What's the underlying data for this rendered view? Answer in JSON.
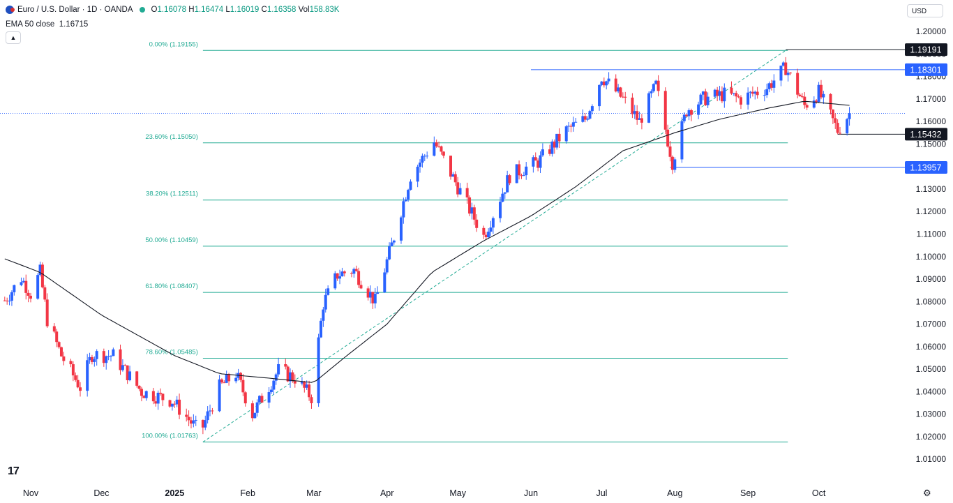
{
  "header": {
    "symbol": "Euro / U.S. Dollar · 1D · OANDA",
    "o_label": "O",
    "o": "1.16078",
    "h_label": "H",
    "h": "1.16474",
    "l_label": "L",
    "l": "1.16019",
    "c_label": "C",
    "c": "1.16358",
    "vol_label": "Vol",
    "vol": "158.83K",
    "ema": "EMA 50 close",
    "ema_value": "1.16715",
    "currency": "USD"
  },
  "icons": {
    "flag": "eur-usd-flag-icon",
    "status": "market-status-dot-icon",
    "collapse": "chevron-up-icon",
    "logo": "tradingview-logo-icon",
    "settings": "gear-icon"
  },
  "colors": {
    "up": "#2962ff",
    "down": "#f23645",
    "fib": "#22ab94",
    "ema": "#131722",
    "price_line": "#2962ff"
  },
  "chart_data": {
    "type": "candlestick",
    "y_ticks": [
      "1.20000",
      "1.19000",
      "1.18000",
      "1.17000",
      "1.16000",
      "1.15000",
      "1.14000",
      "1.13000",
      "1.12000",
      "1.11000",
      "1.10000",
      "1.09000",
      "1.08000",
      "1.07000",
      "1.06000",
      "1.05000",
      "1.04000",
      "1.03000",
      "1.02000",
      "1.01000"
    ],
    "x_ticks": [
      {
        "label": "Nov",
        "date": "2024-11-01",
        "bold": false
      },
      {
        "label": "Dec",
        "date": "2024-12-01",
        "bold": false
      },
      {
        "label": "2025",
        "date": "2025-01-01",
        "bold": true
      },
      {
        "label": "Feb",
        "date": "2025-02-01",
        "bold": false
      },
      {
        "label": "Mar",
        "date": "2025-03-01",
        "bold": false
      },
      {
        "label": "Apr",
        "date": "2025-04-01",
        "bold": false
      },
      {
        "label": "May",
        "date": "2025-05-01",
        "bold": false
      },
      {
        "label": "Jun",
        "date": "2025-06-01",
        "bold": false
      },
      {
        "label": "Jul",
        "date": "2025-07-01",
        "bold": false
      },
      {
        "label": "Aug",
        "date": "2025-08-01",
        "bold": false
      },
      {
        "label": "Sep",
        "date": "2025-09-01",
        "bold": false
      },
      {
        "label": "Oct",
        "date": "2025-10-01",
        "bold": false
      }
    ],
    "fib_levels": [
      {
        "label": "0.00% (1.19155)",
        "value": 1.19155
      },
      {
        "label": "23.60% (1.15050)",
        "value": 1.1505
      },
      {
        "label": "38.20% (1.12511)",
        "value": 1.12511
      },
      {
        "label": "50.00% (1.10459)",
        "value": 1.10459
      },
      {
        "label": "61.80% (1.08407)",
        "value": 1.08407
      },
      {
        "label": "78.60% (1.05485)",
        "value": 1.05485
      },
      {
        "label": "100.00% (1.01763)",
        "value": 1.01763
      }
    ],
    "fib_range": {
      "start_date": "2025-01-13",
      "end_date": "2025-09-17",
      "low": 1.01763,
      "high": 1.19155
    },
    "horizontal_lines": [
      {
        "value": 1.19191,
        "from": "2025-09-17",
        "color": "#131722"
      },
      {
        "value": 1.18301,
        "from": "2025-06-01",
        "color": "#2962ff"
      },
      {
        "value": 1.15432,
        "from": "2025-10-09",
        "color": "#131722"
      },
      {
        "value": 1.13957,
        "from": "2025-07-30",
        "color": "#2962ff"
      }
    ],
    "price_labels": [
      {
        "text": "1.19191",
        "value": 1.19191,
        "color": "#131722"
      },
      {
        "text": "1.18301",
        "value": 1.18301,
        "color": "#2962ff"
      },
      {
        "text": "1.15432",
        "value": 1.15432,
        "color": "#131722"
      },
      {
        "text": "1.13957",
        "value": 1.13957,
        "color": "#2962ff"
      }
    ],
    "current_price": 1.16358,
    "ohlc_knots": [
      [
        "2024-10-21",
        1.0805
      ],
      [
        "2024-10-28",
        1.0905
      ],
      [
        "2024-11-01",
        1.0835
      ],
      [
        "2024-11-05",
        1.093
      ],
      [
        "2024-11-08",
        1.072
      ],
      [
        "2024-11-14",
        1.056
      ],
      [
        "2024-11-22",
        1.042
      ],
      [
        "2024-11-27",
        1.0565
      ],
      [
        "2024-12-06",
        1.056
      ],
      [
        "2024-12-18",
        1.04
      ],
      [
        "2024-12-31",
        1.036
      ],
      [
        "2025-01-10",
        1.024
      ],
      [
        "2025-01-13",
        1.0245
      ],
      [
        "2025-01-20",
        1.042
      ],
      [
        "2025-01-27",
        1.048
      ],
      [
        "2025-02-03",
        1.03
      ],
      [
        "2025-02-14",
        1.0495
      ],
      [
        "2025-02-21",
        1.046
      ],
      [
        "2025-02-28",
        1.0375
      ],
      [
        "2025-03-05",
        1.079
      ],
      [
        "2025-03-11",
        1.092
      ],
      [
        "2025-03-18",
        1.094
      ],
      [
        "2025-03-27",
        1.08
      ],
      [
        "2025-04-03",
        1.105
      ],
      [
        "2025-04-11",
        1.136
      ],
      [
        "2025-04-21",
        1.151
      ],
      [
        "2025-04-30",
        1.133
      ],
      [
        "2025-05-12",
        1.109
      ],
      [
        "2025-05-23",
        1.136
      ],
      [
        "2025-06-04",
        1.142
      ],
      [
        "2025-06-16",
        1.156
      ],
      [
        "2025-06-24",
        1.161
      ],
      [
        "2025-07-01",
        1.18
      ],
      [
        "2025-07-10",
        1.17
      ],
      [
        "2025-07-17",
        1.16
      ],
      [
        "2025-07-24",
        1.176
      ],
      [
        "2025-07-31",
        1.142
      ],
      [
        "2025-08-06",
        1.165
      ],
      [
        "2025-08-13",
        1.17
      ],
      [
        "2025-08-22",
        1.172
      ],
      [
        "2025-08-29",
        1.17
      ],
      [
        "2025-09-09",
        1.175
      ],
      [
        "2025-09-17",
        1.184
      ],
      [
        "2025-09-25",
        1.167
      ],
      [
        "2025-10-01",
        1.173
      ],
      [
        "2025-10-09",
        1.156
      ],
      [
        "2025-10-14",
        1.1636
      ]
    ],
    "ema_knots": [
      [
        "2024-10-21",
        1.099
      ],
      [
        "2024-11-05",
        1.093
      ],
      [
        "2024-12-01",
        1.074
      ],
      [
        "2025-01-01",
        1.056
      ],
      [
        "2025-01-20",
        1.048
      ],
      [
        "2025-02-10",
        1.046
      ],
      [
        "2025-03-01",
        1.044
      ],
      [
        "2025-03-15",
        1.056
      ],
      [
        "2025-04-01",
        1.07
      ],
      [
        "2025-04-20",
        1.093
      ],
      [
        "2025-05-12",
        1.107
      ],
      [
        "2025-06-01",
        1.118
      ],
      [
        "2025-06-20",
        1.131
      ],
      [
        "2025-07-10",
        1.147
      ],
      [
        "2025-08-01",
        1.155
      ],
      [
        "2025-08-20",
        1.161
      ],
      [
        "2025-09-10",
        1.166
      ],
      [
        "2025-09-25",
        1.169
      ],
      [
        "2025-10-14",
        1.16715
      ]
    ]
  }
}
